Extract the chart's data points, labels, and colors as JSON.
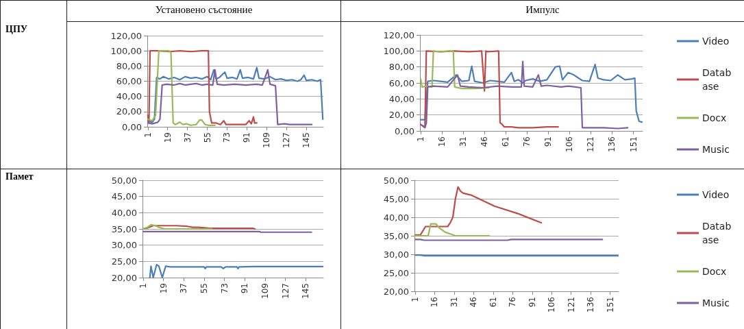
{
  "chart_data": [
    {
      "type": "line",
      "title": "Установено състояние",
      "ylabel": "ЦПУ",
      "xlim": [
        0.5,
        160.5
      ],
      "xticks": [
        1,
        19,
        37,
        55,
        73,
        91,
        109,
        127,
        145
      ],
      "ylim": [
        0,
        120
      ],
      "yticks": [
        {
          "value": 0,
          "label": "0,00"
        },
        {
          "value": 20,
          "label": "20,00"
        },
        {
          "value": 40,
          "label": "40,00"
        },
        {
          "value": 60,
          "label": "60,00"
        },
        {
          "value": 80,
          "label": "80,00"
        },
        {
          "value": 100,
          "label": "100,00"
        },
        {
          "value": 120,
          "label": "120,00"
        }
      ],
      "grid": "y",
      "marker": "none",
      "line_style": "solid",
      "series": [
        {
          "color": "#4a7ebb",
          "x": [
            1,
            5,
            7,
            9,
            12,
            15,
            20,
            25,
            30,
            35,
            40,
            45,
            50,
            55,
            58,
            61,
            63,
            66,
            71,
            73,
            78,
            82,
            85,
            87,
            92,
            97,
            100,
            102,
            107,
            112,
            117,
            122,
            127,
            132,
            137,
            140,
            143,
            145,
            150,
            155,
            158,
            160
          ],
          "values": [
            8,
            6,
            10,
            65,
            63,
            66,
            63,
            65,
            62,
            66,
            64,
            65,
            63,
            66,
            62,
            75,
            63,
            65,
            72,
            64,
            65,
            63,
            75,
            64,
            65,
            63,
            78,
            64,
            63,
            66,
            62,
            63,
            61,
            62,
            60,
            62,
            68,
            61,
            62,
            60,
            62,
            10
          ]
        },
        {
          "color": "#be4b48",
          "x": [
            1,
            2,
            3,
            10,
            20,
            30,
            40,
            50,
            56,
            57,
            59,
            63,
            67,
            70,
            72,
            80,
            90,
            93,
            95,
            97,
            98,
            100
          ],
          "values": [
            15,
            5,
            100,
            100,
            99,
            100,
            99,
            100,
            100,
            20,
            5,
            5,
            3,
            8,
            3,
            3,
            3,
            8,
            4,
            13,
            5,
            5
          ]
        },
        {
          "color": "#98b954",
          "x": [
            1,
            5,
            8,
            11,
            15,
            20,
            22,
            24,
            26,
            30,
            33,
            36,
            40,
            45,
            48,
            50,
            53,
            56,
            60,
            62
          ],
          "values": [
            10,
            8,
            15,
            100,
            100,
            100,
            98,
            5,
            3,
            6,
            3,
            4,
            2,
            3,
            9,
            9,
            3,
            2,
            2,
            2
          ]
        },
        {
          "color": "#7d60a0",
          "x": [
            1,
            5,
            10,
            12,
            14,
            18,
            25,
            30,
            35,
            40,
            45,
            50,
            55,
            60,
            62,
            64,
            70,
            80,
            90,
            100,
            105,
            110,
            112,
            117,
            119,
            125,
            130,
            140,
            150
          ],
          "values": [
            5,
            4,
            6,
            10,
            55,
            56,
            55,
            57,
            55,
            56,
            57,
            55,
            56,
            55,
            75,
            56,
            55,
            56,
            55,
            56,
            55,
            75,
            56,
            54,
            3,
            4,
            3,
            3,
            3
          ]
        }
      ]
    },
    {
      "type": "line",
      "title": "Импулс",
      "xlim": [
        0.5,
        157.5
      ],
      "xticks": [
        1,
        16,
        31,
        46,
        61,
        76,
        91,
        106,
        121,
        136,
        151
      ],
      "ylim": [
        0,
        120
      ],
      "yticks": [
        {
          "value": 0,
          "label": "0,00"
        },
        {
          "value": 20,
          "label": "20,00"
        },
        {
          "value": 40,
          "label": "40,00"
        },
        {
          "value": 60,
          "label": "60,00"
        },
        {
          "value": 80,
          "label": "80,00"
        },
        {
          "value": 100,
          "label": "100,00"
        },
        {
          "value": 120,
          "label": "120,00"
        }
      ],
      "grid": "y",
      "marker": "none",
      "line_style": "solid",
      "legend": "right",
      "series": [
        {
          "name": "Video",
          "color": "#4a7ebb",
          "x": [
            1,
            4,
            6,
            10,
            15,
            20,
            26,
            30,
            35,
            37,
            39,
            45,
            50,
            55,
            60,
            65,
            67,
            70,
            73,
            75,
            80,
            85,
            90,
            96,
            99,
            101,
            105,
            109,
            115,
            120,
            124,
            126,
            130,
            135,
            140,
            145,
            150,
            152,
            153,
            155,
            157
          ],
          "values": [
            14,
            14,
            62,
            63,
            62,
            61,
            70,
            62,
            63,
            81,
            62,
            60,
            63,
            62,
            61,
            73,
            62,
            64,
            60,
            63,
            65,
            62,
            64,
            80,
            81,
            64,
            73,
            70,
            63,
            62,
            83,
            66,
            64,
            63,
            70,
            64,
            65,
            66,
            25,
            12,
            11
          ]
        },
        {
          "name": "Database",
          "color": "#be4b48",
          "x": [
            1,
            4,
            5,
            15,
            25,
            35,
            44,
            46,
            47,
            48,
            56,
            57,
            58,
            60,
            65,
            70,
            80,
            90,
            98
          ],
          "values": [
            8,
            5,
            100,
            99,
            100,
            99,
            100,
            50,
            100,
            99,
            100,
            10,
            9,
            5,
            5,
            4,
            4,
            5,
            5
          ]
        },
        {
          "name": "Docx",
          "color": "#98b954",
          "x": [
            1,
            2,
            5,
            9,
            10,
            15,
            20,
            24,
            25,
            30,
            40,
            49
          ],
          "values": [
            65,
            55,
            56,
            55,
            100,
            99,
            100,
            100,
            55,
            53,
            53,
            54
          ]
        },
        {
          "name": "Music",
          "color": "#7d60a0",
          "x": [
            1,
            4,
            5,
            6,
            10,
            20,
            27,
            29,
            35,
            45,
            55,
            65,
            72,
            73,
            74,
            80,
            84,
            86,
            90,
            100,
            105,
            110,
            114,
            115,
            120,
            130,
            140,
            147
          ],
          "values": [
            8,
            4,
            10,
            55,
            56,
            55,
            70,
            56,
            55,
            54,
            56,
            55,
            55,
            87,
            56,
            55,
            70,
            56,
            57,
            55,
            56,
            55,
            54,
            4,
            4,
            4,
            3,
            4
          ]
        }
      ]
    },
    {
      "type": "line",
      "ylabel": "Памет",
      "xlim": [
        0.5,
        160.5
      ],
      "xticks": [
        1,
        19,
        37,
        55,
        73,
        91,
        109,
        127,
        145
      ],
      "ylim": [
        20,
        50
      ],
      "yticks": [
        {
          "value": 20,
          "label": "20,00"
        },
        {
          "value": 25,
          "label": "25,00"
        },
        {
          "value": 30,
          "label": "30,00"
        },
        {
          "value": 35,
          "label": "35,00"
        },
        {
          "value": 40,
          "label": "40,00"
        },
        {
          "value": 45,
          "label": "45,00"
        },
        {
          "value": 50,
          "label": "50,00"
        }
      ],
      "grid": "y",
      "marker": "none",
      "line_style": "solid",
      "series": [
        {
          "color": "#4a7ebb",
          "x": [
            7,
            8,
            10,
            13,
            15,
            18,
            21,
            25,
            40,
            55,
            56,
            57,
            70,
            72,
            74,
            84,
            85,
            86,
            100,
            130,
            160
          ],
          "values": [
            20,
            23.5,
            20,
            24,
            23.5,
            20,
            23.5,
            23.3,
            23.3,
            23.3,
            22.8,
            23.3,
            23.3,
            22.8,
            23.3,
            23.3,
            22.8,
            23.3,
            23.4,
            23.4,
            23.4
          ]
        },
        {
          "color": "#be4b48",
          "x": [
            1,
            5,
            10,
            20,
            30,
            40,
            45,
            50,
            60,
            70,
            80,
            90,
            98,
            100
          ],
          "values": [
            35,
            35.3,
            36,
            36,
            36,
            35.8,
            35.5,
            35.5,
            35.2,
            35.2,
            35.2,
            35.2,
            35.2,
            35
          ]
        },
        {
          "color": "#98b954",
          "x": [
            1,
            5,
            8,
            12,
            15,
            20,
            30,
            40,
            50,
            62
          ],
          "values": [
            35,
            35.5,
            36.3,
            36,
            35.5,
            35,
            35,
            35,
            35,
            35
          ]
        },
        {
          "color": "#7d60a0",
          "x": [
            1,
            104,
            105,
            150
          ],
          "values": [
            34.2,
            34.2,
            34,
            34
          ]
        }
      ]
    },
    {
      "type": "line",
      "xlim": [
        0.5,
        157.5
      ],
      "xticks": [
        1,
        16,
        31,
        46,
        61,
        76,
        91,
        106,
        121,
        136,
        151
      ],
      "ylim": [
        20,
        50
      ],
      "yticks": [
        {
          "value": 20,
          "label": "20,00"
        },
        {
          "value": 25,
          "label": "25,00"
        },
        {
          "value": 30,
          "label": "30,00"
        },
        {
          "value": 35,
          "label": "35,00"
        },
        {
          "value": 40,
          "label": "40,00"
        },
        {
          "value": 45,
          "label": "45,00"
        },
        {
          "value": 50,
          "label": "50,00"
        }
      ],
      "grid": "y",
      "marker": "none",
      "line_style": "solid",
      "legend": "right",
      "series": [
        {
          "name": "Video",
          "color": "#4a7ebb",
          "x": [
            1,
            5,
            8,
            157
          ],
          "values": [
            29.8,
            29.8,
            29.6,
            29.6
          ]
        },
        {
          "name": "Database",
          "color": "#be4b48",
          "x": [
            1,
            5,
            9,
            15,
            26,
            28,
            30,
            32,
            34,
            36,
            38,
            44,
            62,
            80,
            98
          ],
          "values": [
            35.2,
            35.2,
            37.5,
            37.5,
            37.5,
            38.5,
            40,
            45,
            48.2,
            47,
            46.5,
            46,
            43,
            41,
            38.5
          ]
        },
        {
          "name": "Docx",
          "color": "#98b954",
          "x": [
            1,
            11,
            13,
            17,
            20,
            24,
            28,
            32,
            58
          ],
          "values": [
            35,
            35,
            38.2,
            38.2,
            37,
            36,
            35.5,
            35,
            35
          ]
        },
        {
          "name": "Music",
          "color": "#7d60a0",
          "x": [
            1,
            5,
            8,
            72,
            75,
            145
          ],
          "values": [
            34,
            34,
            33.8,
            33.8,
            34,
            34
          ]
        }
      ]
    }
  ]
}
